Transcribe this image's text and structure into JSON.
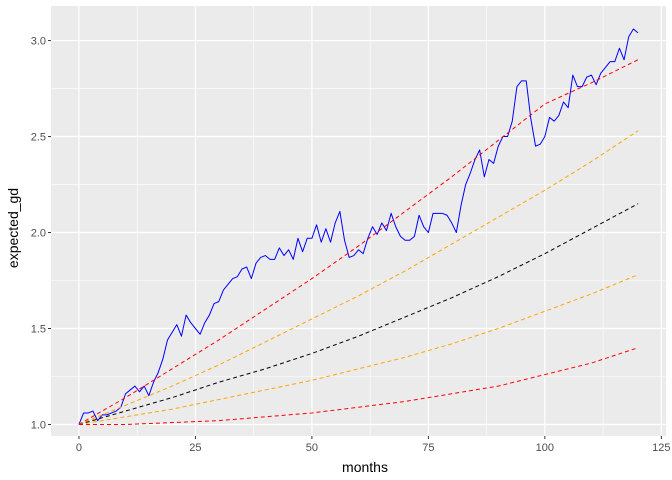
{
  "chart_data": {
    "type": "line",
    "title": "",
    "xlabel": "months",
    "ylabel": "expected_gd",
    "xlim": [
      -6,
      126
    ],
    "ylim": [
      0.94,
      3.18
    ],
    "x_ticks": [
      0,
      25,
      50,
      75,
      100,
      125
    ],
    "y_ticks": [
      1.0,
      1.5,
      2.0,
      2.5,
      3.0
    ],
    "x_tick_labels": [
      "0",
      "25",
      "50",
      "75",
      "100",
      "125"
    ],
    "y_tick_labels": [
      "1.0",
      "1.5",
      "2.0",
      "2.5",
      "3.0"
    ],
    "grid": true,
    "legend": "none",
    "background": "#ebebeb",
    "series": [
      {
        "color": "#0000ff",
        "style": "solid",
        "x": [
          0,
          1,
          2,
          3,
          4,
          5,
          6,
          7,
          8,
          9,
          10,
          11,
          12,
          13,
          14,
          15,
          16,
          17,
          18,
          19,
          20,
          21,
          22,
          23,
          24,
          25,
          26,
          27,
          28,
          29,
          30,
          31,
          32,
          33,
          34,
          35,
          36,
          37,
          38,
          39,
          40,
          41,
          42,
          43,
          44,
          45,
          46,
          47,
          48,
          49,
          50,
          51,
          52,
          53,
          54,
          55,
          56,
          57,
          58,
          59,
          60,
          61,
          62,
          63,
          64,
          65,
          66,
          67,
          68,
          69,
          70,
          71,
          72,
          73,
          74,
          75,
          76,
          77,
          78,
          79,
          80,
          81,
          82,
          83,
          84,
          85,
          86,
          87,
          88,
          89,
          90,
          91,
          92,
          93,
          94,
          95,
          96,
          97,
          98,
          99,
          100,
          101,
          102,
          103,
          104,
          105,
          106,
          107,
          108,
          109,
          110,
          111,
          112,
          113,
          114,
          115,
          116,
          117,
          118,
          119,
          120
        ],
        "y": [
          1.0,
          1.06,
          1.06,
          1.07,
          1.02,
          1.05,
          1.05,
          1.06,
          1.07,
          1.09,
          1.16,
          1.18,
          1.2,
          1.17,
          1.2,
          1.15,
          1.22,
          1.27,
          1.34,
          1.44,
          1.48,
          1.52,
          1.46,
          1.57,
          1.53,
          1.5,
          1.47,
          1.53,
          1.57,
          1.63,
          1.64,
          1.7,
          1.73,
          1.76,
          1.77,
          1.81,
          1.82,
          1.76,
          1.84,
          1.87,
          1.88,
          1.86,
          1.86,
          1.92,
          1.88,
          1.91,
          1.86,
          1.97,
          1.9,
          1.97,
          1.97,
          2.04,
          1.95,
          2.02,
          1.95,
          2.05,
          2.11,
          1.96,
          1.87,
          1.88,
          1.91,
          1.89,
          1.97,
          2.03,
          1.99,
          2.05,
          2.01,
          2.1,
          2.03,
          1.98,
          1.96,
          1.96,
          1.98,
          2.09,
          2.03,
          2.0,
          2.1,
          2.1,
          2.1,
          2.09,
          2.05,
          2.0,
          2.14,
          2.25,
          2.31,
          2.38,
          2.43,
          2.29,
          2.38,
          2.36,
          2.45,
          2.5,
          2.5,
          2.58,
          2.76,
          2.79,
          2.79,
          2.59,
          2.45,
          2.46,
          2.5,
          2.6,
          2.58,
          2.61,
          2.68,
          2.65,
          2.82,
          2.76,
          2.76,
          2.81,
          2.82,
          2.77,
          2.83,
          2.86,
          2.89,
          2.89,
          2.96,
          2.9,
          3.02,
          3.06,
          3.04
        ]
      },
      {
        "color": "#ff0000",
        "style": "dashed",
        "x": [
          0,
          10,
          20,
          30,
          40,
          50,
          60,
          70,
          80,
          90,
          100,
          110,
          120
        ],
        "y": [
          1.0,
          1.14,
          1.29,
          1.44,
          1.6,
          1.76,
          1.93,
          2.11,
          2.29,
          2.48,
          2.67,
          2.78,
          2.9
        ]
      },
      {
        "color": "#ffa500",
        "style": "dashed",
        "x": [
          0,
          10,
          20,
          30,
          40,
          50,
          60,
          70,
          80,
          90,
          100,
          110,
          120
        ],
        "y": [
          1.0,
          1.1,
          1.2,
          1.31,
          1.43,
          1.55,
          1.67,
          1.8,
          1.94,
          2.08,
          2.22,
          2.37,
          2.53
        ]
      },
      {
        "color": "#000000",
        "style": "dashed",
        "x": [
          0,
          10,
          20,
          30,
          40,
          50,
          60,
          70,
          80,
          90,
          100,
          110,
          120
        ],
        "y": [
          1.0,
          1.07,
          1.14,
          1.22,
          1.29,
          1.37,
          1.46,
          1.56,
          1.66,
          1.77,
          1.89,
          2.02,
          2.15
        ]
      },
      {
        "color": "#ffa500",
        "style": "dashed",
        "x": [
          0,
          10,
          20,
          30,
          40,
          50,
          60,
          70,
          80,
          90,
          100,
          110,
          120
        ],
        "y": [
          1.0,
          1.04,
          1.08,
          1.13,
          1.18,
          1.23,
          1.29,
          1.35,
          1.42,
          1.5,
          1.59,
          1.68,
          1.78
        ]
      },
      {
        "color": "#ff0000",
        "style": "dashed",
        "x": [
          0,
          10,
          20,
          30,
          40,
          50,
          60,
          70,
          80,
          90,
          100,
          110,
          120
        ],
        "y": [
          1.0,
          1.0,
          1.01,
          1.02,
          1.04,
          1.06,
          1.09,
          1.12,
          1.16,
          1.2,
          1.26,
          1.32,
          1.4
        ]
      }
    ]
  }
}
